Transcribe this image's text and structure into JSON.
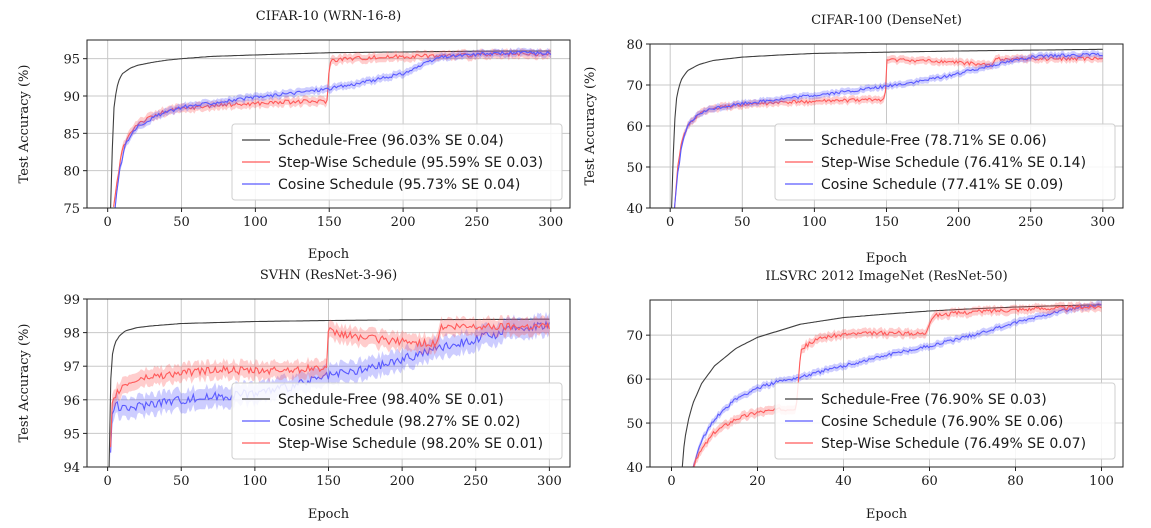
{
  "chart_data": [
    {
      "type": "line",
      "title": "CIFAR-10 (WRN-16-8)",
      "xlabel": "Epoch",
      "ylabel": "Test Accuracy (%)",
      "xlim": [
        -14,
        313
      ],
      "ylim": [
        75,
        97.5
      ],
      "xticks": [
        0,
        50,
        100,
        150,
        200,
        250,
        300
      ],
      "yticks": [
        75,
        80,
        85,
        90,
        95
      ],
      "grid": true,
      "legend_position": "lower-right",
      "series": [
        {
          "name": "Schedule-Free (96.03% SE 0.04)",
          "color": "#404040",
          "band": 0.0,
          "x": [
            2,
            3,
            4,
            6,
            8,
            10,
            15,
            20,
            30,
            40,
            50,
            70,
            100,
            150,
            200,
            250,
            300
          ],
          "y": [
            75,
            82,
            88,
            91,
            92.3,
            93,
            93.7,
            94.1,
            94.5,
            94.8,
            95,
            95.3,
            95.5,
            95.8,
            95.9,
            96,
            96.03
          ]
        },
        {
          "name": "Step-Wise Schedule (95.59% SE 0.03)",
          "color": "#ff5a5a",
          "band": 0.6,
          "x": [
            4,
            6,
            10,
            15,
            20,
            30,
            40,
            50,
            70,
            100,
            120,
            149,
            150,
            152,
            160,
            200,
            250,
            300
          ],
          "y": [
            75,
            78,
            83,
            85,
            86.3,
            87.2,
            88,
            88.3,
            88.7,
            89,
            89.2,
            89.3,
            94.5,
            94.8,
            95,
            95.3,
            95.5,
            95.59
          ]
        },
        {
          "name": "Cosine Schedule (95.73% SE 0.04)",
          "color": "#5a5aff",
          "band": 0.5,
          "x": [
            5,
            8,
            12,
            18,
            25,
            35,
            50,
            75,
            100,
            125,
            150,
            175,
            200,
            225,
            250,
            275,
            300
          ],
          "y": [
            75,
            80,
            83.5,
            85.5,
            86.5,
            87.5,
            88.5,
            89.2,
            89.8,
            90.4,
            91,
            91.9,
            93,
            95.2,
            95.6,
            95.8,
            95.73
          ]
        }
      ]
    },
    {
      "type": "line",
      "title": "CIFAR-100 (DenseNet)",
      "xlabel": "Epoch",
      "ylabel": "Test Accuracy (%)",
      "xlim": [
        -14,
        314
      ],
      "ylim": [
        40,
        80
      ],
      "xticks": [
        0,
        50,
        100,
        150,
        200,
        250,
        300
      ],
      "yticks": [
        40,
        50,
        60,
        70,
        80
      ],
      "grid": true,
      "legend_position": "lower-right",
      "series": [
        {
          "name": "Schedule-Free (78.71% SE 0.06)",
          "color": "#404040",
          "band": 0.0,
          "x": [
            1,
            2,
            3,
            4,
            6,
            8,
            12,
            20,
            30,
            50,
            75,
            100,
            150,
            200,
            250,
            300
          ],
          "y": [
            40,
            52,
            60,
            66,
            69.5,
            71.5,
            73.5,
            75,
            76,
            76.8,
            77.3,
            77.7,
            78,
            78.3,
            78.5,
            78.71
          ]
        },
        {
          "name": "Step-Wise Schedule (76.41% SE 0.14)",
          "color": "#ff5a5a",
          "band": 0.9,
          "x": [
            3,
            5,
            8,
            12,
            20,
            30,
            50,
            75,
            100,
            120,
            149,
            150,
            151,
            175,
            200,
            224,
            225,
            227,
            250,
            300
          ],
          "y": [
            40,
            50,
            56,
            60,
            63,
            64.3,
            65.2,
            65.7,
            66,
            66.2,
            66.5,
            75.8,
            76.2,
            75.9,
            75.5,
            74.8,
            76.2,
            76.4,
            76.4,
            76.41
          ]
        },
        {
          "name": "Cosine Schedule (77.41% SE 0.09)",
          "color": "#5a5aff",
          "band": 0.8,
          "x": [
            3,
            5,
            8,
            12,
            20,
            30,
            50,
            75,
            100,
            125,
            150,
            175,
            200,
            225,
            250,
            275,
            300
          ],
          "y": [
            40,
            48,
            55,
            60,
            63,
            64.3,
            65.5,
            66.5,
            67.5,
            68.5,
            69.7,
            71,
            72.8,
            75,
            76.8,
            77.3,
            77.41
          ]
        }
      ]
    },
    {
      "type": "line",
      "title": "SVHN (ResNet-3-96)",
      "xlabel": "Epoch",
      "ylabel": "Test Accuracy (%)",
      "xlim": [
        -14,
        314
      ],
      "ylim": [
        94,
        99
      ],
      "xticks": [
        0,
        50,
        100,
        150,
        200,
        250,
        300
      ],
      "yticks": [
        94,
        95,
        96,
        97,
        98,
        99
      ],
      "grid": true,
      "legend_position": "lower-right",
      "series": [
        {
          "name": "Schedule-Free (98.40% SE 0.01)",
          "color": "#404040",
          "band": 0.0,
          "x": [
            1,
            2,
            3,
            5,
            8,
            12,
            20,
            30,
            50,
            75,
            100,
            150,
            200,
            250,
            300
          ],
          "y": [
            94,
            96.5,
            97.3,
            97.7,
            97.9,
            98.05,
            98.15,
            98.2,
            98.27,
            98.3,
            98.33,
            98.36,
            98.38,
            98.39,
            98.4
          ]
        },
        {
          "name": "Cosine Schedule (98.27% SE 0.02)",
          "color": "#5a5aff",
          "band": 0.3,
          "x": [
            2,
            3,
            5,
            10,
            20,
            30,
            50,
            75,
            100,
            125,
            150,
            175,
            200,
            225,
            250,
            275,
            300
          ],
          "y": [
            94.5,
            95.5,
            95.9,
            95.7,
            95.8,
            95.9,
            96,
            96.1,
            96.2,
            96.4,
            96.7,
            96.9,
            97.2,
            97.55,
            97.8,
            98.1,
            98.27
          ]
        },
        {
          "name": "Step-Wise Schedule (98.20% SE 0.01)",
          "color": "#ff5a5a",
          "band": 0.25,
          "x": [
            2,
            3,
            5,
            10,
            20,
            30,
            50,
            75,
            100,
            125,
            149,
            150,
            152,
            175,
            200,
            224,
            225,
            227,
            250,
            300
          ],
          "y": [
            94.5,
            95.8,
            96.1,
            96.4,
            96.6,
            96.7,
            96.8,
            96.9,
            96.85,
            96.9,
            96.95,
            98.1,
            98.0,
            97.85,
            97.72,
            97.65,
            98.1,
            98.15,
            98.18,
            98.2
          ]
        }
      ]
    },
    {
      "type": "line",
      "title": "ILSVRC 2012 ImageNet (ResNet-50)",
      "xlabel": "Epoch",
      "ylabel": "",
      "xlim": [
        -5,
        105
      ],
      "ylim": [
        40,
        78
      ],
      "xticks": [
        0,
        20,
        40,
        60,
        80,
        100
      ],
      "yticks": [
        40,
        50,
        60,
        70
      ],
      "grid": true,
      "legend_position": "lower-right",
      "series": [
        {
          "name": "Schedule-Free (76.90% SE 0.03)",
          "color": "#404040",
          "band": 0.0,
          "x": [
            2.5,
            3,
            4,
            5,
            7,
            10,
            15,
            20,
            30,
            40,
            50,
            60,
            70,
            80,
            90,
            100
          ],
          "y": [
            40,
            46,
            51,
            54.5,
            59,
            63,
            67,
            69.5,
            72.5,
            74,
            74.8,
            75.5,
            76,
            76.4,
            76.7,
            76.9
          ]
        },
        {
          "name": "Cosine Schedule (76.90% SE 0.06)",
          "color": "#5a5aff",
          "band": 0.8,
          "x": [
            5,
            7,
            10,
            15,
            20,
            25,
            30,
            35,
            40,
            50,
            60,
            70,
            80,
            90,
            100
          ],
          "y": [
            40,
            46,
            51,
            55.5,
            58,
            59.5,
            60.5,
            61.8,
            63,
            65.5,
            67.5,
            70,
            72.8,
            75.5,
            76.9
          ]
        },
        {
          "name": "Step-Wise Schedule (76.49% SE 0.07)",
          "color": "#ff5a5a",
          "band": 1.0,
          "x": [
            5,
            7,
            10,
            15,
            20,
            25,
            29,
            30,
            31,
            35,
            40,
            50,
            59,
            60,
            61,
            70,
            80,
            90,
            100
          ],
          "y": [
            40,
            44,
            48,
            51,
            52.5,
            53,
            53.5,
            66,
            67.5,
            69.5,
            70.2,
            70.5,
            70.4,
            73,
            74.5,
            75.3,
            75.8,
            76.2,
            76.49
          ]
        }
      ]
    }
  ]
}
